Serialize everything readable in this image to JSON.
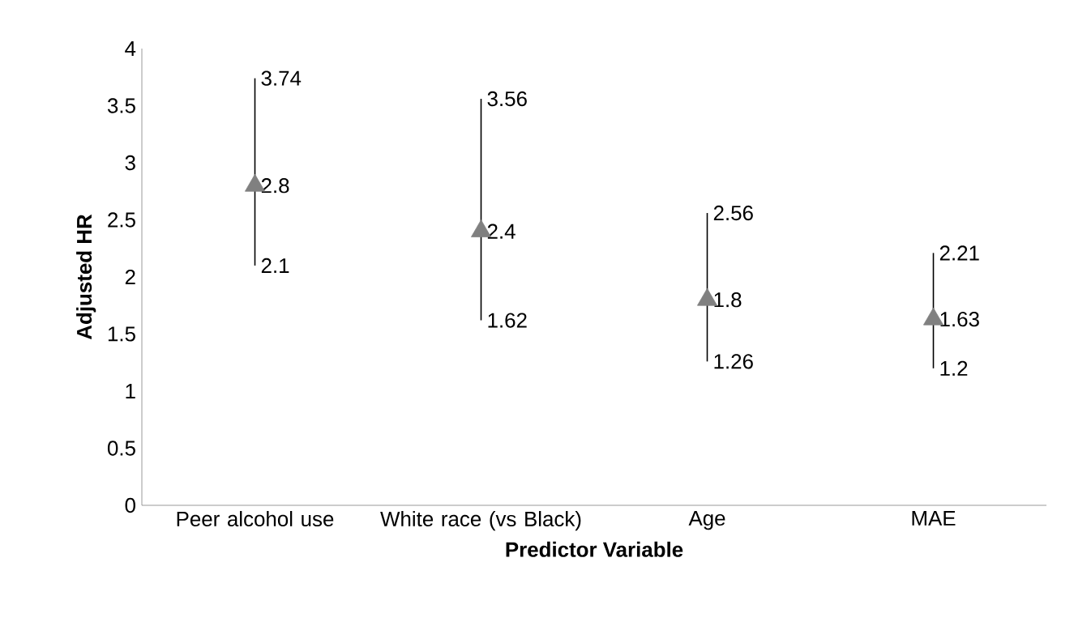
{
  "chart_data": {
    "type": "scatter",
    "xlabel": "Predictor Variable",
    "ylabel": "Adjusted HR",
    "categories": [
      "Peer alcohol use",
      "White race (vs Black)",
      "Age",
      "MAE"
    ],
    "values": [
      2.8,
      2.4,
      1.8,
      1.63
    ],
    "errors": [
      [
        2.1,
        3.74
      ],
      [
        1.62,
        3.56
      ],
      [
        1.26,
        2.56
      ],
      [
        1.2,
        2.21
      ]
    ],
    "color": "#808080",
    "marker": "triangle",
    "data_labels": true,
    "grid": false,
    "ylim": [
      0,
      4
    ],
    "yticks": [
      0,
      0.5,
      1,
      1.5,
      2,
      2.5,
      3,
      3.5,
      4
    ],
    "annotations": [
      {
        "text": "3.74",
        "x": "Peer alcohol use",
        "y": 3.74
      },
      {
        "text": "2.1",
        "x": "Peer alcohol use",
        "y": 2.1
      },
      {
        "text": "3.56",
        "x": "White race (vs Black)",
        "y": 3.56
      },
      {
        "text": "1.62",
        "x": "White race (vs Black)",
        "y": 1.62
      },
      {
        "text": "2.56",
        "x": "Age",
        "y": 2.56
      },
      {
        "text": "1.26",
        "x": "Age",
        "y": 1.26
      },
      {
        "text": "2.21",
        "x": "MAE",
        "y": 2.21
      },
      {
        "text": "1.2",
        "x": "MAE",
        "y": 1.2
      }
    ]
  }
}
